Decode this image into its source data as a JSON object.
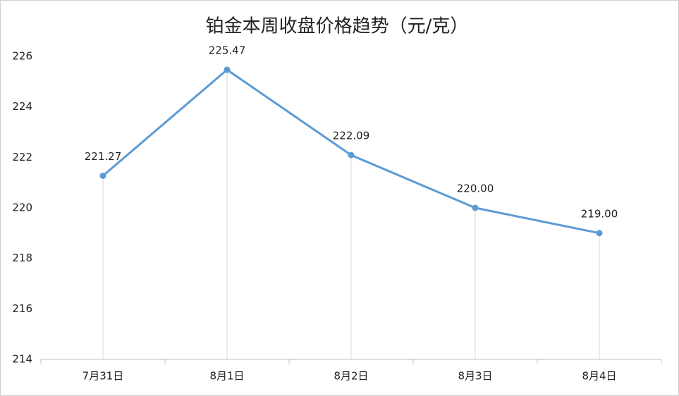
{
  "chart_data": {
    "type": "line",
    "title": "铂金本周收盘价格趋势（元/克）",
    "categories": [
      "7月31日",
      "8月1日",
      "8月2日",
      "8月3日",
      "8月4日"
    ],
    "series": [
      {
        "color": "#5b9bd5",
        "values": [
          221.27,
          225.47,
          222.09,
          220,
          219
        ],
        "value_labels": [
          "221.27",
          "225.47",
          "222.09",
          "220.00",
          "219.00"
        ]
      }
    ],
    "ylim": [
      214,
      226
    ],
    "yticks": [
      214,
      216,
      218,
      220,
      222,
      224,
      226
    ],
    "drop_lines": true
  }
}
